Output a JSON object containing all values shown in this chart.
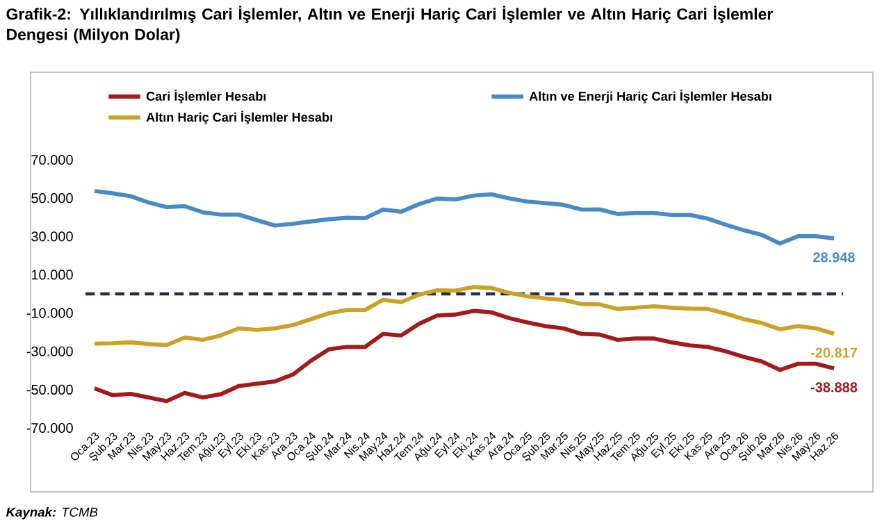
{
  "chart_data": {
    "type": "line",
    "title": "Grafik-2: Yıllıklandırılmış Cari İşlemler, Altın ve Enerji Hariç Cari İşlemler ve Altın Hariç Cari İşlemler Dengesi (Milyon Dolar)",
    "categories": [
      "Oca.23",
      "Şub.23",
      "Mar.23",
      "Nis.23",
      "May.23",
      "Haz.23",
      "Tem.23",
      "Ağu.23",
      "Eyl.23",
      "Eki.23",
      "Kas.23",
      "Ara.23",
      "Oca.24",
      "Şub.24",
      "Mar.24",
      "Nis.24",
      "May.24",
      "Haz.24",
      "Tem.24",
      "Ağu.24",
      "Eyl.24",
      "Eki.24",
      "Kas.24",
      "Ara.24",
      "Oca.25",
      "Şub.25",
      "Mar.25",
      "Nis.25",
      "May.25",
      "Haz.25",
      "Tem.25",
      "Ağu.25",
      "Eyl.25",
      "Eki.25",
      "Kas.25",
      "Ara.25",
      "Oca.26",
      "Şub.26",
      "Mar.26",
      "Nis.26",
      "May.26",
      "Haz.26"
    ],
    "series": [
      {
        "name": "Cari İşlemler Hesabı",
        "color": "#a31a1c",
        "values": [
          -49300,
          -52900,
          -52200,
          -54100,
          -56000,
          -51700,
          -54100,
          -52400,
          -48100,
          -46900,
          -45700,
          -42100,
          -34900,
          -28900,
          -27700,
          -27700,
          -20900,
          -21700,
          -15600,
          -11300,
          -10800,
          -8900,
          -9600,
          -12700,
          -14900,
          -16800,
          -18000,
          -20900,
          -21200,
          -24000,
          -23300,
          -23300,
          -25300,
          -26900,
          -27700,
          -30000,
          -32900,
          -35300,
          -39700,
          -36500,
          -36500,
          -38888
        ],
        "value_labels": [
          null,
          null,
          null,
          null,
          null,
          null,
          null,
          null,
          null,
          null,
          null,
          null,
          null,
          null,
          null,
          null,
          null,
          null,
          null,
          null,
          null,
          null,
          null,
          null,
          null,
          null,
          null,
          null,
          null,
          null,
          null,
          null,
          null,
          null,
          null,
          null,
          null,
          null,
          null,
          null,
          null,
          "-38.888"
        ]
      },
      {
        "name": "Altın ve Enerji Hariç Cari İşlemler Hesabı",
        "color": "#4a8ac4",
        "values": [
          53700,
          52500,
          51000,
          47700,
          45300,
          45800,
          42600,
          41400,
          41400,
          38500,
          35700,
          36600,
          37800,
          39000,
          39700,
          39500,
          44000,
          42900,
          46900,
          49800,
          49300,
          51300,
          52000,
          49800,
          48200,
          47400,
          46500,
          44000,
          44100,
          41700,
          42200,
          42200,
          41200,
          41200,
          39300,
          36100,
          33200,
          30800,
          26300,
          30100,
          30100,
          28948
        ],
        "value_labels": [
          null,
          null,
          null,
          null,
          null,
          null,
          null,
          null,
          null,
          null,
          null,
          null,
          null,
          null,
          null,
          null,
          null,
          null,
          null,
          null,
          null,
          null,
          null,
          null,
          null,
          null,
          null,
          null,
          null,
          null,
          null,
          null,
          null,
          null,
          null,
          null,
          null,
          null,
          null,
          null,
          null,
          "28.948"
        ]
      },
      {
        "name": "Altın Hariç Cari İşlemler Hesabı",
        "color": "#c9a227",
        "values": [
          -26000,
          -25800,
          -25300,
          -26200,
          -26700,
          -22800,
          -24000,
          -21700,
          -18000,
          -18800,
          -18000,
          -16300,
          -13200,
          -10100,
          -8400,
          -8400,
          -3100,
          -4300,
          -400,
          1900,
          1700,
          3600,
          3100,
          500,
          -1200,
          -2400,
          -3100,
          -5300,
          -5500,
          -7900,
          -7200,
          -6500,
          -7200,
          -7700,
          -7900,
          -10300,
          -13200,
          -15200,
          -18500,
          -16800,
          -18000,
          -20817
        ],
        "value_labels": [
          null,
          null,
          null,
          null,
          null,
          null,
          null,
          null,
          null,
          null,
          null,
          null,
          null,
          null,
          null,
          null,
          null,
          null,
          null,
          null,
          null,
          null,
          null,
          null,
          null,
          null,
          null,
          null,
          null,
          null,
          null,
          null,
          null,
          null,
          null,
          null,
          null,
          null,
          null,
          null,
          null,
          "-20.817"
        ]
      }
    ],
    "ylim": [
      -70000,
      70000
    ],
    "yticks": [
      {
        "value": -70000,
        "label": "-70.000"
      },
      {
        "value": -50000,
        "label": "-50.000"
      },
      {
        "value": -30000,
        "label": "-30.000"
      },
      {
        "value": -10000,
        "label": "-10.000"
      },
      {
        "value": 10000,
        "label": "10.000"
      },
      {
        "value": 30000,
        "label": "30.000"
      },
      {
        "value": 50000,
        "label": "50.000"
      },
      {
        "value": 70000,
        "label": "70.000"
      }
    ],
    "ref_lines": [
      {
        "axis": "y",
        "value": 0,
        "color": "#1f2d50",
        "line_style": "dashed"
      }
    ],
    "legend": "top",
    "marker": "none",
    "line_style": "solid",
    "annotations": [
      "**Kaynak:** TCMB"
    ]
  }
}
